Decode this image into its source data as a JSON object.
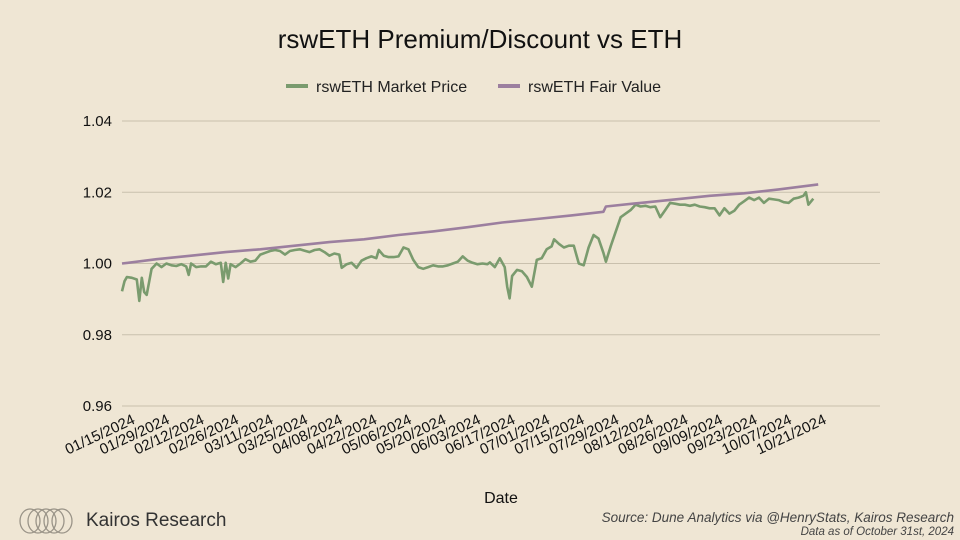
{
  "title": "rswETH Premium/Discount vs ETH",
  "brand": {
    "name": "Kairos Research",
    "logo_icon": "interlocking-rings-logo-icon"
  },
  "source": {
    "line1": "Source: Dune Analytics via @HenryStats, Kairos Research",
    "line2": "Data as of October 31st, 2024"
  },
  "colors": {
    "background": "#efe6d4",
    "market": "#7a9b6e",
    "fair": "#9c7f9f",
    "grid": "#c9c0ad"
  },
  "chart_data": {
    "type": "line",
    "title": "rswETH Premium/Discount vs ETH",
    "xlabel": "Date",
    "ylabel": "",
    "ylim": [
      0.96,
      1.04
    ],
    "yticks": [
      "0.96",
      "0.98",
      "1.00",
      "1.02",
      "1.04"
    ],
    "grid": true,
    "legend_position": "top-center",
    "x_start": "2024-01-15",
    "x_end": "2024-10-31",
    "xticks": [
      "01/15/2024",
      "01/29/2024",
      "02/12/2024",
      "02/26/2024",
      "03/11/2024",
      "03/25/2024",
      "04/08/2024",
      "04/22/2024",
      "05/06/2024",
      "05/20/2024",
      "06/03/2024",
      "06/17/2024",
      "07/01/2024",
      "07/15/2024",
      "07/29/2024",
      "08/12/2024",
      "08/26/2024",
      "09/09/2024",
      "09/23/2024",
      "10/07/2024",
      "10/21/2024"
    ],
    "series": [
      {
        "name": "rswETH Market Price",
        "color": "#7a9b6e",
        "points": [
          [
            "2024-01-15",
            0.9922
          ],
          [
            "2024-01-16",
            0.995
          ],
          [
            "2024-01-17",
            0.9962
          ],
          [
            "2024-01-19",
            0.996
          ],
          [
            "2024-01-21",
            0.9955
          ],
          [
            "2024-01-22",
            0.9895
          ],
          [
            "2024-01-23",
            0.996
          ],
          [
            "2024-01-24",
            0.992
          ],
          [
            "2024-01-25",
            0.9912
          ],
          [
            "2024-01-27",
            0.9985
          ],
          [
            "2024-01-29",
            1.0
          ],
          [
            "2024-01-31",
            0.999
          ],
          [
            "2024-02-02",
            1.0
          ],
          [
            "2024-02-04",
            0.9995
          ],
          [
            "2024-02-06",
            0.9993
          ],
          [
            "2024-02-08",
            0.9998
          ],
          [
            "2024-02-10",
            0.9992
          ],
          [
            "2024-02-11",
            0.9968
          ],
          [
            "2024-02-12",
            1.0
          ],
          [
            "2024-02-14",
            0.999
          ],
          [
            "2024-02-16",
            0.9992
          ],
          [
            "2024-02-18",
            0.9992
          ],
          [
            "2024-02-20",
            1.0005
          ],
          [
            "2024-02-22",
            0.9998
          ],
          [
            "2024-02-24",
            1.0002
          ],
          [
            "2024-02-25",
            0.9948
          ],
          [
            "2024-02-26",
            1.0002
          ],
          [
            "2024-02-27",
            0.9958
          ],
          [
            "2024-02-28",
            0.9998
          ],
          [
            "2024-03-01",
            0.999
          ],
          [
            "2024-03-03",
            1.0
          ],
          [
            "2024-03-05",
            1.0012
          ],
          [
            "2024-03-07",
            1.0005
          ],
          [
            "2024-03-09",
            1.0008
          ],
          [
            "2024-03-11",
            1.0025
          ],
          [
            "2024-03-13",
            1.003
          ],
          [
            "2024-03-15",
            1.0035
          ],
          [
            "2024-03-17",
            1.0038
          ],
          [
            "2024-03-19",
            1.0035
          ],
          [
            "2024-03-21",
            1.0025
          ],
          [
            "2024-03-23",
            1.0035
          ],
          [
            "2024-03-25",
            1.0038
          ],
          [
            "2024-03-27",
            1.004
          ],
          [
            "2024-03-29",
            1.0036
          ],
          [
            "2024-03-31",
            1.0032
          ],
          [
            "2024-04-02",
            1.0038
          ],
          [
            "2024-04-04",
            1.004
          ],
          [
            "2024-04-06",
            1.0032
          ],
          [
            "2024-04-08",
            1.0022
          ],
          [
            "2024-04-10",
            1.0028
          ],
          [
            "2024-04-12",
            1.0025
          ],
          [
            "2024-04-13",
            0.9988
          ],
          [
            "2024-04-15",
            0.9998
          ],
          [
            "2024-04-17",
            1.0002
          ],
          [
            "2024-04-19",
            0.9988
          ],
          [
            "2024-04-21",
            1.0008
          ],
          [
            "2024-04-23",
            1.0015
          ],
          [
            "2024-04-25",
            1.002
          ],
          [
            "2024-04-27",
            1.0015
          ],
          [
            "2024-04-28",
            1.0038
          ],
          [
            "2024-04-30",
            1.0022
          ],
          [
            "2024-05-02",
            1.0018
          ],
          [
            "2024-05-04",
            1.0018
          ],
          [
            "2024-05-06",
            1.002
          ],
          [
            "2024-05-08",
            1.0045
          ],
          [
            "2024-05-10",
            1.004
          ],
          [
            "2024-05-12",
            1.001
          ],
          [
            "2024-05-14",
            0.999
          ],
          [
            "2024-05-16",
            0.9985
          ],
          [
            "2024-05-18",
            0.999
          ],
          [
            "2024-05-20",
            0.9995
          ],
          [
            "2024-05-22",
            0.9992
          ],
          [
            "2024-05-24",
            0.9992
          ],
          [
            "2024-05-26",
            0.9995
          ],
          [
            "2024-05-28",
            1.0
          ],
          [
            "2024-05-30",
            1.0005
          ],
          [
            "2024-06-01",
            1.002
          ],
          [
            "2024-06-03",
            1.0008
          ],
          [
            "2024-06-05",
            1.0002
          ],
          [
            "2024-06-07",
            0.9998
          ],
          [
            "2024-06-09",
            1.0
          ],
          [
            "2024-06-11",
            0.9998
          ],
          [
            "2024-06-12",
            1.0003
          ],
          [
            "2024-06-14",
            0.999
          ],
          [
            "2024-06-16",
            1.0015
          ],
          [
            "2024-06-18",
            0.999
          ],
          [
            "2024-06-19",
            0.9935
          ],
          [
            "2024-06-20",
            0.9902
          ],
          [
            "2024-06-21",
            0.9965
          ],
          [
            "2024-06-23",
            0.9982
          ],
          [
            "2024-06-25",
            0.9978
          ],
          [
            "2024-06-27",
            0.9962
          ],
          [
            "2024-06-29",
            0.9935
          ],
          [
            "2024-07-01",
            1.001
          ],
          [
            "2024-07-03",
            1.0015
          ],
          [
            "2024-07-05",
            1.004
          ],
          [
            "2024-07-07",
            1.0048
          ],
          [
            "2024-07-08",
            1.0068
          ],
          [
            "2024-07-10",
            1.0055
          ],
          [
            "2024-07-12",
            1.0045
          ],
          [
            "2024-07-14",
            1.005
          ],
          [
            "2024-07-16",
            1.005
          ],
          [
            "2024-07-18",
            1.0
          ],
          [
            "2024-07-20",
            0.9995
          ],
          [
            "2024-07-22",
            1.0045
          ],
          [
            "2024-07-24",
            1.008
          ],
          [
            "2024-07-26",
            1.007
          ],
          [
            "2024-07-28",
            1.003
          ],
          [
            "2024-07-29",
            1.0005
          ],
          [
            "2024-07-31",
            1.005
          ],
          [
            "2024-08-02",
            1.009
          ],
          [
            "2024-08-04",
            1.013
          ],
          [
            "2024-08-06",
            1.014
          ],
          [
            "2024-08-08",
            1.015
          ],
          [
            "2024-08-10",
            1.0165
          ],
          [
            "2024-08-12",
            1.016
          ],
          [
            "2024-08-14",
            1.0162
          ],
          [
            "2024-08-16",
            1.0158
          ],
          [
            "2024-08-18",
            1.016
          ],
          [
            "2024-08-20",
            1.013
          ],
          [
            "2024-08-22",
            1.015
          ],
          [
            "2024-08-24",
            1.017
          ],
          [
            "2024-08-26",
            1.0168
          ],
          [
            "2024-08-28",
            1.0165
          ],
          [
            "2024-08-30",
            1.0165
          ],
          [
            "2024-09-01",
            1.0162
          ],
          [
            "2024-09-03",
            1.0165
          ],
          [
            "2024-09-05",
            1.016
          ],
          [
            "2024-09-07",
            1.0158
          ],
          [
            "2024-09-09",
            1.0155
          ],
          [
            "2024-09-11",
            1.0155
          ],
          [
            "2024-09-13",
            1.0135
          ],
          [
            "2024-09-15",
            1.0155
          ],
          [
            "2024-09-17",
            1.014
          ],
          [
            "2024-09-19",
            1.0148
          ],
          [
            "2024-09-21",
            1.0165
          ],
          [
            "2024-09-23",
            1.0175
          ],
          [
            "2024-09-25",
            1.0185
          ],
          [
            "2024-09-27",
            1.0178
          ],
          [
            "2024-09-29",
            1.0185
          ],
          [
            "2024-10-01",
            1.017
          ],
          [
            "2024-10-03",
            1.0182
          ],
          [
            "2024-10-05",
            1.018
          ],
          [
            "2024-10-07",
            1.0178
          ],
          [
            "2024-10-09",
            1.0172
          ],
          [
            "2024-10-11",
            1.017
          ],
          [
            "2024-10-13",
            1.0182
          ],
          [
            "2024-10-15",
            1.0185
          ],
          [
            "2024-10-17",
            1.019
          ],
          [
            "2024-10-18",
            1.02
          ],
          [
            "2024-10-19",
            1.0165
          ],
          [
            "2024-10-21",
            1.0182
          ]
        ]
      },
      {
        "name": "rswETH Fair Value",
        "color": "#9c7f9f",
        "points": [
          [
            "2024-01-15",
            1.0
          ],
          [
            "2024-01-29",
            1.0012
          ],
          [
            "2024-02-12",
            1.0022
          ],
          [
            "2024-02-26",
            1.0032
          ],
          [
            "2024-03-11",
            1.004
          ],
          [
            "2024-03-25",
            1.005
          ],
          [
            "2024-04-08",
            1.006
          ],
          [
            "2024-04-22",
            1.0068
          ],
          [
            "2024-05-06",
            1.008
          ],
          [
            "2024-05-20",
            1.009
          ],
          [
            "2024-06-03",
            1.0102
          ],
          [
            "2024-06-17",
            1.0115
          ],
          [
            "2024-07-01",
            1.0125
          ],
          [
            "2024-07-15",
            1.0135
          ],
          [
            "2024-07-28",
            1.0145
          ],
          [
            "2024-07-29",
            1.016
          ],
          [
            "2024-08-12",
            1.017
          ],
          [
            "2024-08-26",
            1.018
          ],
          [
            "2024-09-09",
            1.019
          ],
          [
            "2024-09-23",
            1.0197
          ],
          [
            "2024-10-07",
            1.0208
          ],
          [
            "2024-10-23",
            1.0222
          ]
        ]
      }
    ]
  }
}
